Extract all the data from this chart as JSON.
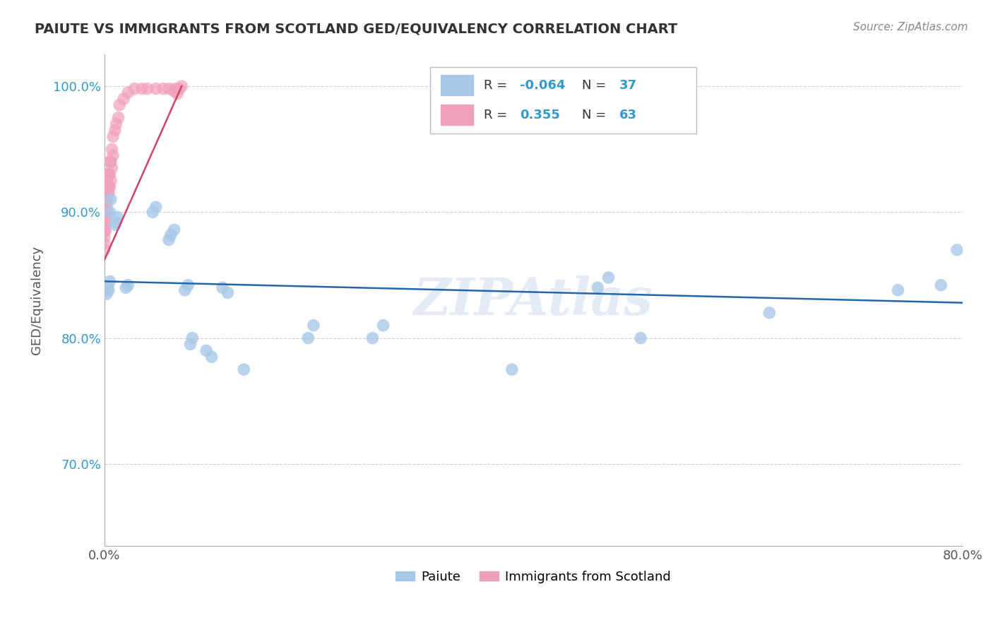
{
  "title": "PAIUTE VS IMMIGRANTS FROM SCOTLAND GED/EQUIVALENCY CORRELATION CHART",
  "source_text": "Source: ZipAtlas.com",
  "ylabel": "GED/Equivalency",
  "xlim": [
    0.0,
    0.8
  ],
  "ylim": [
    0.635,
    1.025
  ],
  "blue_color": "#a8c8e8",
  "pink_color": "#f0a0b8",
  "blue_line_color": "#2266aa",
  "pink_line_color": "#cc4466",
  "grid_color": "#ccccdd",
  "background_color": "#ffffff",
  "watermark": "ZIPAtlas",
  "blue_scatter_x": [
    0.002,
    0.003,
    0.004,
    0.005,
    0.005,
    0.006,
    0.01,
    0.011,
    0.012,
    0.02,
    0.022,
    0.045,
    0.048,
    0.06,
    0.062,
    0.065,
    0.075,
    0.078,
    0.08,
    0.082,
    0.095,
    0.1,
    0.11,
    0.115,
    0.13,
    0.19,
    0.195,
    0.25,
    0.26,
    0.38,
    0.46,
    0.47,
    0.5,
    0.62,
    0.74,
    0.78,
    0.795
  ],
  "blue_scatter_y": [
    0.835,
    0.84,
    0.838,
    0.845,
    0.9,
    0.91,
    0.89,
    0.892,
    0.896,
    0.84,
    0.842,
    0.9,
    0.904,
    0.878,
    0.882,
    0.886,
    0.838,
    0.842,
    0.795,
    0.8,
    0.79,
    0.785,
    0.84,
    0.836,
    0.775,
    0.8,
    0.81,
    0.8,
    0.81,
    0.775,
    0.84,
    0.848,
    0.8,
    0.82,
    0.838,
    0.842,
    0.87
  ],
  "pink_scatter_x": [
    0.0,
    0.0,
    0.0,
    0.0,
    0.0,
    0.0,
    0.0,
    0.0,
    0.0,
    0.0,
    0.001,
    0.001,
    0.001,
    0.001,
    0.001,
    0.001,
    0.002,
    0.002,
    0.002,
    0.002,
    0.002,
    0.003,
    0.003,
    0.003,
    0.003,
    0.004,
    0.004,
    0.004,
    0.005,
    0.005,
    0.005,
    0.006,
    0.006,
    0.007,
    0.007,
    0.008,
    0.008,
    0.01,
    0.011,
    0.013,
    0.014,
    0.018,
    0.022,
    0.028,
    0.035,
    0.04,
    0.048,
    0.055,
    0.06,
    0.065,
    0.066,
    0.068,
    0.07,
    0.072
  ],
  "pink_scatter_y": [
    0.87,
    0.875,
    0.88,
    0.885,
    0.89,
    0.895,
    0.9,
    0.905,
    0.91,
    0.92,
    0.885,
    0.89,
    0.895,
    0.9,
    0.91,
    0.92,
    0.9,
    0.905,
    0.91,
    0.915,
    0.925,
    0.91,
    0.915,
    0.92,
    0.93,
    0.915,
    0.92,
    0.93,
    0.92,
    0.93,
    0.94,
    0.925,
    0.94,
    0.935,
    0.95,
    0.945,
    0.96,
    0.965,
    0.97,
    0.975,
    0.985,
    0.99,
    0.995,
    0.998,
    0.998,
    0.998,
    0.998,
    0.998,
    0.998,
    0.996,
    0.998,
    0.994,
    0.998,
    1.0
  ],
  "blue_line_x": [
    0.0,
    0.8
  ],
  "blue_line_y": [
    0.845,
    0.828
  ],
  "pink_line_x": [
    0.0,
    0.072
  ],
  "pink_line_y": [
    0.862,
    1.0
  ]
}
